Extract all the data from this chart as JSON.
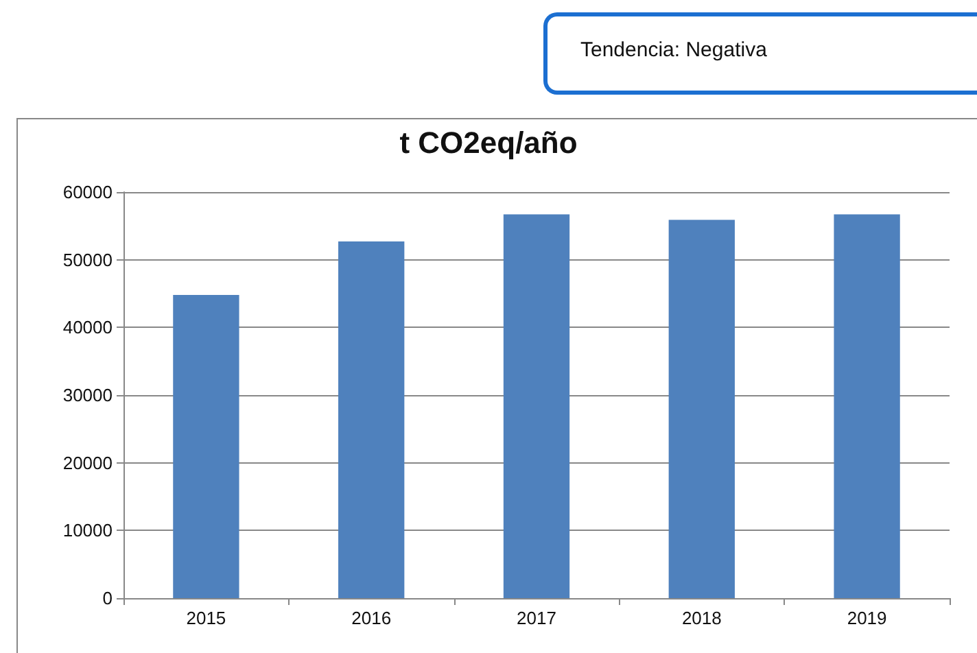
{
  "chart_data": {
    "type": "bar",
    "title": "t CO2eq/año",
    "annotations": [
      "Tendencia: Negativa"
    ],
    "categories": [
      "2015",
      "2016",
      "2017",
      "2018",
      "2019"
    ],
    "values": [
      44800,
      52700,
      56700,
      55900,
      56700
    ],
    "color": "#4f81bd",
    "ylim": [
      0,
      60000
    ],
    "yticks": [
      0,
      10000,
      20000,
      30000,
      40000,
      50000,
      60000
    ],
    "grid": "y"
  }
}
